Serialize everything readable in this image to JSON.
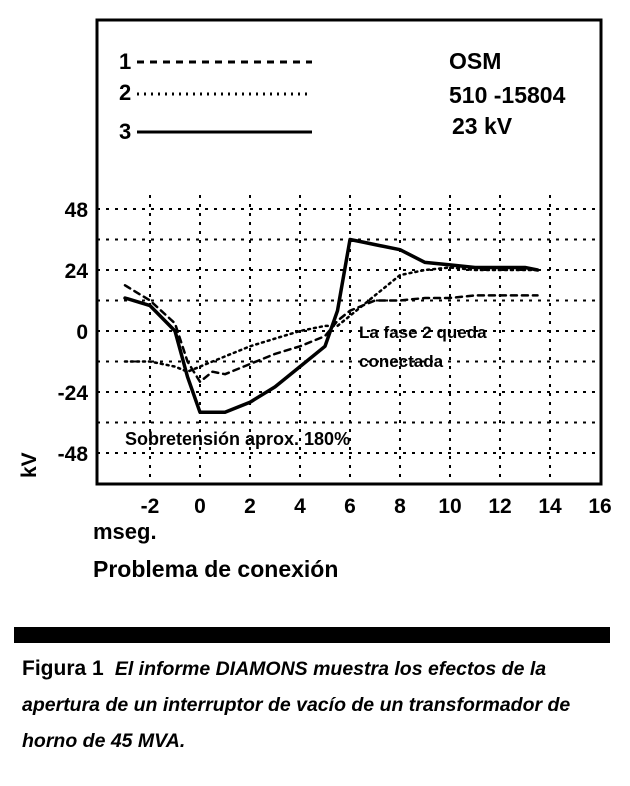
{
  "chart_data": {
    "type": "line",
    "x": [
      -3,
      -2,
      -1,
      -0.5,
      0,
      0.5,
      1,
      2,
      3,
      4,
      5,
      5.5,
      6,
      6.5,
      7,
      8,
      9,
      10,
      11,
      12,
      13,
      13.5
    ],
    "series": [
      {
        "name": "1",
        "style": "dashed",
        "values": [
          18,
          12,
          3,
          -12,
          -20,
          -16,
          -17,
          -13,
          -9,
          -6,
          -2,
          4,
          8,
          10,
          12,
          12,
          13,
          13,
          14,
          14,
          14,
          14
        ]
      },
      {
        "name": "2",
        "style": "dotted",
        "values": [
          -12,
          -12,
          -14,
          -16,
          -14,
          -12,
          -10,
          -6,
          -3,
          0,
          2,
          2,
          6,
          10,
          14,
          22,
          24,
          25,
          24,
          24,
          24,
          24
        ]
      },
      {
        "name": "3",
        "style": "solid",
        "values": [
          13,
          10,
          0,
          -18,
          -32,
          -32,
          -32,
          -28,
          -22,
          -14,
          -6,
          8,
          36,
          35,
          34,
          32,
          27,
          26,
          25,
          25,
          25,
          24
        ]
      }
    ],
    "xticks": [
      "-2",
      "0",
      "2",
      "4",
      "6",
      "8",
      "10",
      "12",
      "14",
      "16"
    ],
    "yticks": [
      "48",
      "24",
      "0",
      "-24",
      "-48"
    ],
    "xlim": [
      -3.2,
      16
    ],
    "ylim": [
      -60,
      48
    ],
    "ylabel": "kV",
    "xlabel": "mseg.",
    "grid": true,
    "legend_labels": [
      "1",
      "2",
      "3"
    ],
    "info": [
      "OSM",
      "510 -15804",
      "23 kV"
    ],
    "annotations": [
      "La fase 2 queda",
      "conectada",
      "Sobretensión aprox. 180%"
    ]
  },
  "subtitle": "Problema de conexión",
  "caption": {
    "figure_label": "Figura 1",
    "text": "El informe DIAMONS muestra los efectos de la apertura de un interruptor de vacío de un transformador de horno de 45 MVA."
  }
}
